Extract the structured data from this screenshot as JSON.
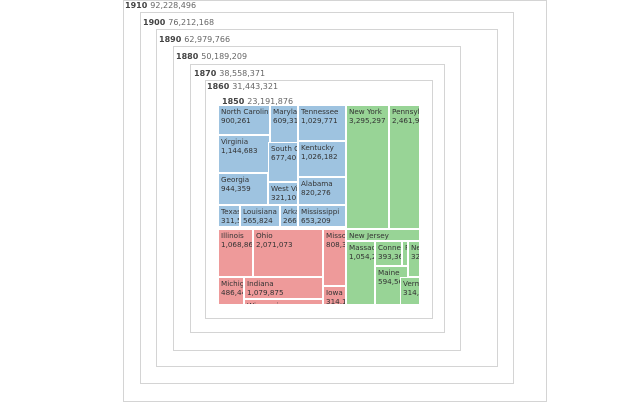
{
  "colors": {
    "South": "#9ec3e0",
    "Northeast": "#98d496",
    "Midwest": "#ee9a9a",
    "West": "#f3c08a",
    "frame": "#d4d4d4"
  },
  "chart_data": {
    "type": "treemap",
    "title": "",
    "focus_year": "1850",
    "years": [
      {
        "year": "1910",
        "population": "92,228,496"
      },
      {
        "year": "1900",
        "population": "76,212,168"
      },
      {
        "year": "1890",
        "population": "62,979,766"
      },
      {
        "year": "1880",
        "population": "50,189,209"
      },
      {
        "year": "1870",
        "population": "38,558,371"
      },
      {
        "year": "1860",
        "population": "31,443,321"
      },
      {
        "year": "1850",
        "population": "23,191,876"
      }
    ],
    "states": [
      {
        "name": "North Carolina",
        "value": "900,261",
        "region": "South"
      },
      {
        "name": "Maryland",
        "value": "609,31",
        "region": "South"
      },
      {
        "name": "Tennessee",
        "value": "1,029,771",
        "region": "South"
      },
      {
        "name": "Virginia",
        "value": "1,144,683",
        "region": "South"
      },
      {
        "name": "South C",
        "value": "677,40",
        "region": "South"
      },
      {
        "name": "Kentucky",
        "value": "1,026,182",
        "region": "South"
      },
      {
        "name": "Georgia",
        "value": "944,359",
        "region": "South"
      },
      {
        "name": "West Vi",
        "value": "321,10",
        "region": "South"
      },
      {
        "name": "Alabama",
        "value": "820,276",
        "region": "South"
      },
      {
        "name": "Texas",
        "value": "311,5",
        "region": "South"
      },
      {
        "name": "Louisiana",
        "value": "565,824",
        "region": "South"
      },
      {
        "name": "Arka",
        "value": "266",
        "region": "South"
      },
      {
        "name": "Mississippi",
        "value": "653,209",
        "region": "South"
      },
      {
        "name": "New York",
        "value": "3,295,297",
        "region": "Northeast"
      },
      {
        "name": "Pennsylva",
        "value": "2,461,96",
        "region": "Northeast"
      },
      {
        "name": "New Jersey",
        "value": "",
        "region": "Northeast"
      },
      {
        "name": "Massach",
        "value": "1,054,2",
        "region": "Northeast"
      },
      {
        "name": "Conne",
        "value": "393,36",
        "region": "Northeast"
      },
      {
        "name": "R",
        "value": "",
        "region": "Northeast"
      },
      {
        "name": "Nev",
        "value": "320",
        "region": "Northeast"
      },
      {
        "name": "Maine",
        "value": "594,56",
        "region": "Northeast"
      },
      {
        "name": "Verm",
        "value": "314,3",
        "region": "Northeast"
      },
      {
        "name": "Illinois",
        "value": "1,068,862",
        "region": "Midwest"
      },
      {
        "name": "Ohio",
        "value": "2,071,073",
        "region": "Midwest"
      },
      {
        "name": "Misso",
        "value": "808,3",
        "region": "Midwest"
      },
      {
        "name": "Michig",
        "value": "486,44",
        "region": "Midwest"
      },
      {
        "name": "Indiana",
        "value": "1,079,875",
        "region": "Midwest"
      },
      {
        "name": "Iowa",
        "value": "314,1",
        "region": "Midwest"
      },
      {
        "name": "Wisconsin",
        "value": "",
        "region": "Midwest"
      },
      {
        "name": "",
        "value": "",
        "region": "West"
      },
      {
        "name": "",
        "value": "",
        "region": "West"
      }
    ]
  }
}
